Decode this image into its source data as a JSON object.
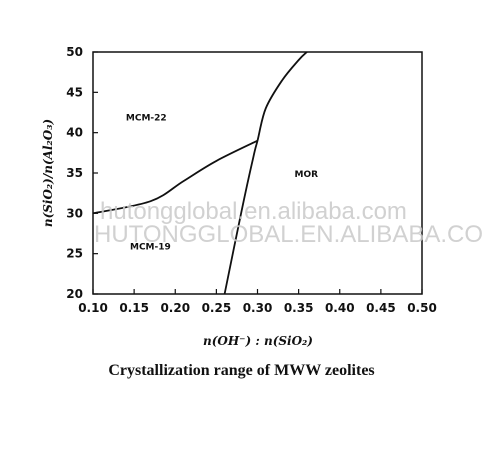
{
  "chart_data": {
    "type": "phase-diagram",
    "caption": "Crystallization range of MWW zeolites",
    "xlabel": "n(OH⁻) : n(SiO₂)",
    "ylabel": "n(SiO₂)/n(Al₂O₃)",
    "xlim": [
      0.1,
      0.5
    ],
    "ylim": [
      20,
      50
    ],
    "x_ticks": [
      "0.10",
      "0.15",
      "0.20",
      "0.25",
      "0.30",
      "0.35",
      "0.40",
      "0.45",
      "0.50"
    ],
    "y_ticks": [
      "20",
      "25",
      "30",
      "35",
      "40",
      "45",
      "50"
    ],
    "regions": [
      {
        "label": "MCM-22",
        "x": 0.14,
        "y": 41.5
      },
      {
        "label": "MOR",
        "x": 0.345,
        "y": 34.5
      },
      {
        "label": "MCM-19",
        "x": 0.145,
        "y": 25.5
      }
    ],
    "boundaries": [
      {
        "points": [
          [
            0.1,
            30.0
          ],
          [
            0.17,
            31.5
          ],
          [
            0.21,
            34.0
          ],
          [
            0.25,
            36.5
          ],
          [
            0.3,
            39.0
          ]
        ]
      },
      {
        "points": [
          [
            0.26,
            20.0
          ],
          [
            0.28,
            30.0
          ],
          [
            0.295,
            37.0
          ],
          [
            0.3,
            39.0
          ],
          [
            0.31,
            43.0
          ],
          [
            0.33,
            46.5
          ],
          [
            0.35,
            49.0
          ],
          [
            0.36,
            50.0
          ]
        ]
      }
    ],
    "grid": false
  },
  "watermarks": [
    "hutongglobal.en.alibaba.com",
    "HUTONGGLOBAL.EN.ALIBABA.COM"
  ]
}
